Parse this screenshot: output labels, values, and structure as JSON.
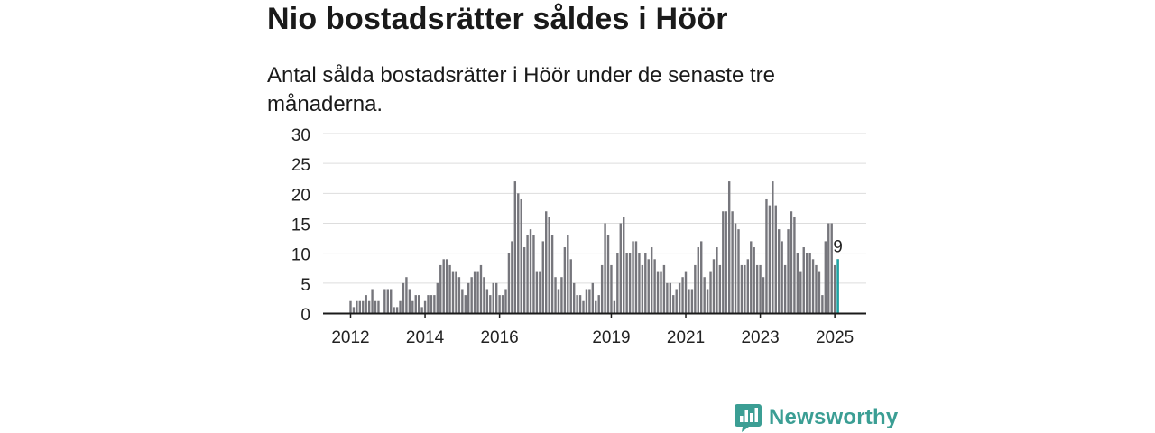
{
  "header": {
    "title": "Nio bostadsrätter såldes i Höör",
    "subtitle": "Antal sålda bostadsrätter i Höör under de senaste tre månaderna."
  },
  "brand": {
    "name": "Newsworthy",
    "color": "#3b9e94"
  },
  "colors": {
    "bar": "#76767c",
    "highlight": "#1aa6a6",
    "grid": "#dddddd",
    "axis": "#1a1a1a"
  },
  "chart_data": {
    "type": "bar",
    "title": "",
    "xlabel": "",
    "ylabel": "",
    "ylim": [
      0,
      30
    ],
    "yticks": [
      0,
      5,
      10,
      15,
      20,
      25,
      30
    ],
    "grid": true,
    "legend": "none",
    "x_tick_labels": [
      {
        "label": "2012",
        "index": 0
      },
      {
        "label": "2014",
        "index": 24
      },
      {
        "label": "2016",
        "index": 48
      },
      {
        "label": "2019",
        "index": 84
      },
      {
        "label": "2021",
        "index": 108
      },
      {
        "label": "2023",
        "index": 132
      },
      {
        "label": "2025",
        "index": 156
      }
    ],
    "start_month": "2012-01",
    "values": [
      2,
      1,
      2,
      2,
      2,
      3,
      2,
      4,
      2,
      2,
      0,
      4,
      4,
      4,
      1,
      1,
      2,
      5,
      6,
      4,
      2,
      3,
      3,
      1,
      2,
      3,
      3,
      3,
      5,
      8,
      9,
      9,
      8,
      7,
      7,
      6,
      4,
      3,
      5,
      6,
      7,
      7,
      8,
      6,
      4,
      3,
      5,
      5,
      3,
      3,
      4,
      10,
      12,
      22,
      20,
      19,
      11,
      13,
      14,
      13,
      7,
      7,
      12,
      17,
      16,
      13,
      6,
      4,
      6,
      11,
      13,
      9,
      5,
      3,
      3,
      2,
      4,
      4,
      5,
      2,
      3,
      8,
      15,
      13,
      8,
      2,
      10,
      15,
      16,
      10,
      10,
      12,
      12,
      10,
      8,
      10,
      9,
      11,
      9,
      7,
      7,
      8,
      5,
      5,
      3,
      4,
      5,
      6,
      7,
      4,
      4,
      8,
      11,
      12,
      6,
      4,
      7,
      9,
      11,
      8,
      17,
      17,
      22,
      17,
      15,
      14,
      8,
      8,
      9,
      12,
      11,
      8,
      8,
      6,
      19,
      18,
      22,
      18,
      14,
      12,
      8,
      14,
      17,
      16,
      10,
      7,
      11,
      10,
      10,
      9,
      8,
      7,
      3,
      12,
      15,
      15,
      8,
      9
    ],
    "highlight_index": 157,
    "highlight_label": "9"
  }
}
